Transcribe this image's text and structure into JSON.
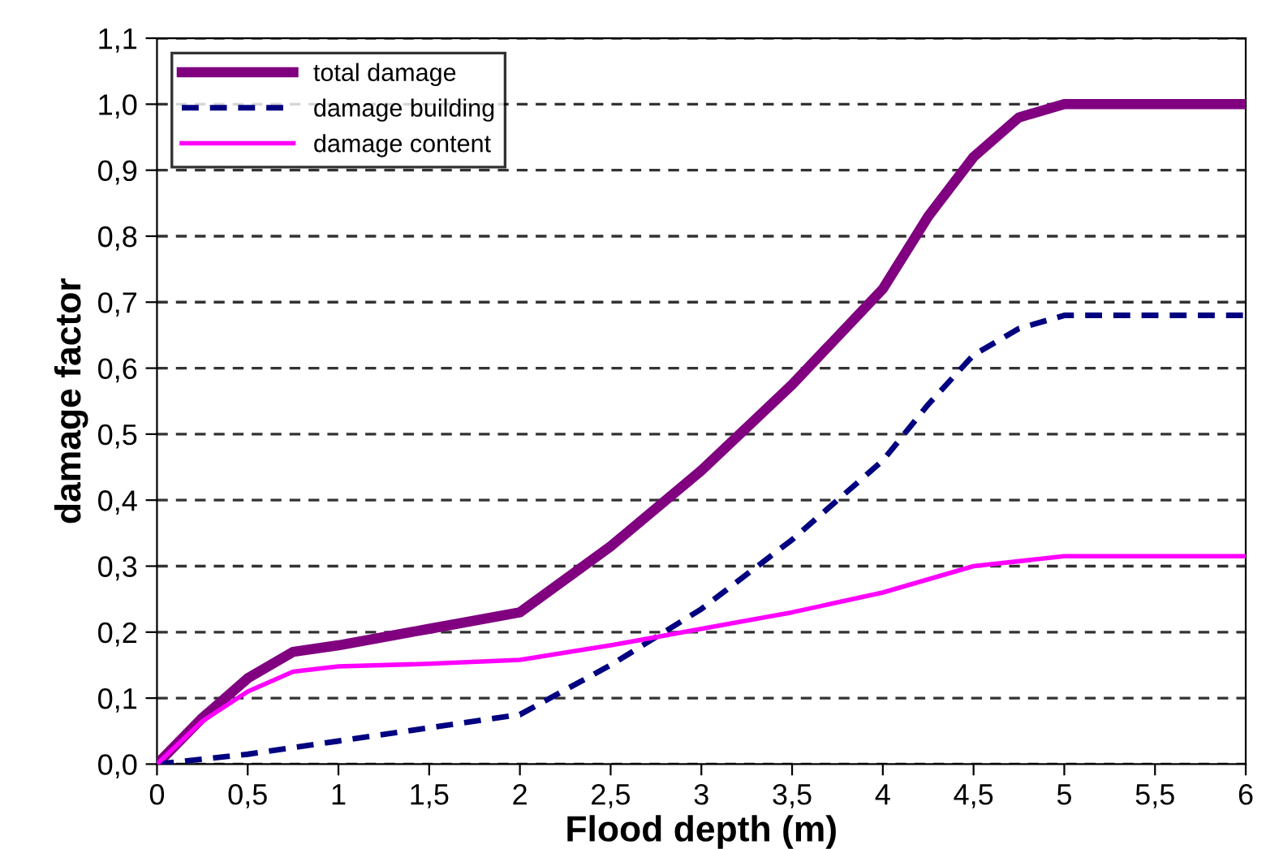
{
  "chart_data": {
    "type": "line",
    "xlabel": "Flood depth (m)",
    "ylabel": "damage factor",
    "series": [
      {
        "name": "total damage",
        "color": "#800080",
        "line_style": "solid",
        "x": [
          0,
          0.25,
          0.5,
          0.75,
          1,
          1.5,
          2,
          2.5,
          3,
          3.5,
          4,
          4.25,
          4.5,
          4.75,
          5,
          6
        ],
        "values": [
          0,
          0.07,
          0.13,
          0.17,
          0.18,
          0.205,
          0.23,
          0.33,
          0.445,
          0.575,
          0.72,
          0.83,
          0.92,
          0.98,
          1.0,
          1.0
        ]
      },
      {
        "name": "damage building",
        "color": "#000080",
        "line_style": "dashed",
        "x": [
          0,
          0.5,
          1,
          1.5,
          2,
          2.5,
          3,
          3.5,
          4,
          4.25,
          4.5,
          4.75,
          5,
          6
        ],
        "values": [
          0,
          0.015,
          0.035,
          0.055,
          0.075,
          0.15,
          0.235,
          0.34,
          0.46,
          0.545,
          0.62,
          0.66,
          0.68,
          0.68
        ]
      },
      {
        "name": "damage content",
        "color": "#ff00ff",
        "line_style": "solid",
        "x": [
          0,
          0.25,
          0.5,
          0.75,
          1,
          1.5,
          2,
          2.5,
          3,
          3.5,
          4,
          4.5,
          5,
          6
        ],
        "values": [
          0,
          0.065,
          0.11,
          0.14,
          0.148,
          0.152,
          0.158,
          0.18,
          0.205,
          0.23,
          0.26,
          0.3,
          0.315,
          0.315
        ]
      }
    ],
    "xlim": [
      0,
      6
    ],
    "ylim": [
      0,
      1.1
    ],
    "xticks": [
      0,
      {
        "value": 0.5,
        "label": "0,5"
      },
      1,
      {
        "value": 1.5,
        "label": "1,5"
      },
      2,
      {
        "value": 2.5,
        "label": "2,5"
      },
      3,
      {
        "value": 3.5,
        "label": "3,5"
      },
      4,
      {
        "value": 4.5,
        "label": "4,5"
      },
      5,
      {
        "value": 5.5,
        "label": "5,5"
      },
      6
    ],
    "yticks": [
      {
        "value": 0,
        "label": "0,0"
      },
      {
        "value": 0.1,
        "label": "0,1"
      },
      {
        "value": 0.2,
        "label": "0,2"
      },
      {
        "value": 0.3,
        "label": "0,3"
      },
      {
        "value": 0.4,
        "label": "0,4"
      },
      {
        "value": 0.5,
        "label": "0,5"
      },
      {
        "value": 0.6,
        "label": "0,6"
      },
      {
        "value": 0.7,
        "label": "0,7"
      },
      {
        "value": 0.8,
        "label": "0,8"
      },
      {
        "value": 0.9,
        "label": "0,9"
      },
      {
        "value": 1.0,
        "label": "1,0"
      },
      {
        "value": 1.1,
        "label": "1,1"
      }
    ],
    "grid": "y",
    "legend": "top left",
    "marker": "none"
  }
}
